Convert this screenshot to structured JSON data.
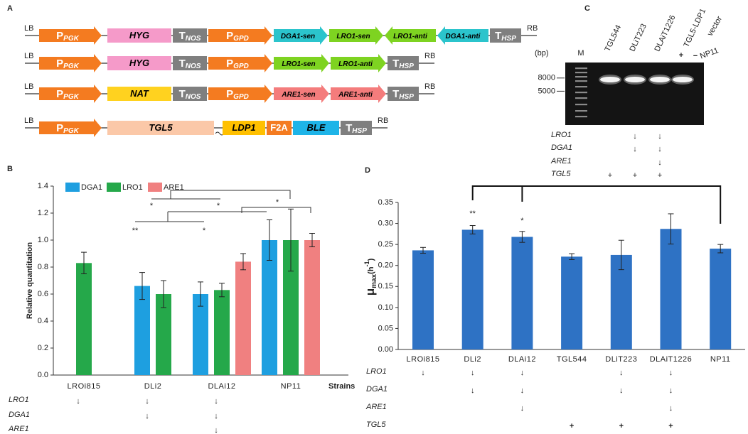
{
  "panel_labels": [
    "A",
    "B",
    "C",
    "D"
  ],
  "constructs": {
    "rows": [
      {
        "left": "LB",
        "right": "RB",
        "parts": [
          {
            "label": "P",
            "sub": "PGK",
            "shape": "arrow",
            "color": "#f47b20"
          },
          {
            "label": "HYG",
            "shape": "box",
            "color": "#f59ac9"
          },
          {
            "label": "T",
            "sub": "NOS",
            "shape": "box",
            "color": "#7f7f7f"
          },
          {
            "label": "P",
            "sub": "GPD",
            "shape": "arrow",
            "color": "#f47b20"
          },
          {
            "label": "DGA1-sen",
            "shape": "arrow",
            "color": "#2bc4cc"
          },
          {
            "label": "LRO1-sen",
            "shape": "arrow",
            "color": "#7ed321"
          },
          {
            "label": "LRO1-anti",
            "shape": "arrow-left",
            "color": "#7ed321"
          },
          {
            "label": "DGA1-anti",
            "shape": "arrow-left",
            "color": "#2bc4cc"
          },
          {
            "label": "T",
            "sub": "HSP",
            "shape": "box",
            "color": "#7f7f7f"
          }
        ]
      },
      {
        "left": "LB",
        "right": "RB",
        "parts": [
          {
            "label": "P",
            "sub": "PGK",
            "shape": "arrow",
            "color": "#f47b20"
          },
          {
            "label": "HYG",
            "shape": "box",
            "color": "#f59ac9"
          },
          {
            "label": "T",
            "sub": "NOS",
            "shape": "box",
            "color": "#7f7f7f"
          },
          {
            "label": "P",
            "sub": "GPD",
            "shape": "arrow",
            "color": "#f47b20"
          },
          {
            "label": "LRO1-sen",
            "shape": "arrow",
            "color": "#7ed321"
          },
          {
            "label": "LRO1-anti",
            "shape": "arrow",
            "color": "#7ed321"
          },
          {
            "label": "T",
            "sub": "HSP",
            "shape": "box",
            "color": "#7f7f7f"
          }
        ]
      },
      {
        "left": "LB",
        "right": "RB",
        "parts": [
          {
            "label": "P",
            "sub": "PGK",
            "shape": "arrow",
            "color": "#f47b20"
          },
          {
            "label": "NAT",
            "shape": "box",
            "color": "#ffd21f"
          },
          {
            "label": "T",
            "sub": "NOS",
            "shape": "box",
            "color": "#7f7f7f"
          },
          {
            "label": "P",
            "sub": "GPD",
            "shape": "arrow",
            "color": "#f47b20"
          },
          {
            "label": "ARE1-sen",
            "shape": "arrow",
            "color": "#f47c7c"
          },
          {
            "label": "ARE1-anti",
            "shape": "arrow",
            "color": "#f47c7c"
          },
          {
            "label": "T",
            "sub": "HSP",
            "shape": "box",
            "color": "#7f7f7f"
          }
        ]
      },
      {
        "left": "LB",
        "right": "RB",
        "parts": [
          {
            "label": "P",
            "sub": "PGK",
            "shape": "arrow",
            "color": "#f47b20"
          },
          {
            "label": "TGL5",
            "shape": "box",
            "color": "#fbc8a8"
          },
          {
            "label": "LDP1",
            "shape": "box",
            "color": "#ffc000"
          },
          {
            "label": "F2A",
            "shape": "box",
            "color": "#f47b20"
          },
          {
            "label": "BLE",
            "shape": "box",
            "color": "#1eb4e8"
          },
          {
            "label": "T",
            "sub": "HSP",
            "shape": "box",
            "color": "#7f7f7f"
          }
        ]
      }
    ]
  },
  "gel": {
    "unit": "(bp)",
    "marker_lane": "M",
    "lanes": [
      {
        "label": "TGL544"
      },
      {
        "label": "DLiT223"
      },
      {
        "label": "DLAiT1226"
      },
      {
        "label": "TGL5-LDP1",
        "sign": "+"
      },
      {
        "label": "vector",
        "label2": "NP11",
        "sign": "−"
      }
    ],
    "markers": [
      8000,
      5000
    ],
    "genotype": [
      {
        "gene": "LRO1",
        "marks": [
          null,
          "↓",
          "↓",
          null,
          null
        ]
      },
      {
        "gene": "DGA1",
        "marks": [
          null,
          "↓",
          "↓",
          null,
          null
        ]
      },
      {
        "gene": "ARE1",
        "marks": [
          null,
          null,
          "↓",
          null,
          null
        ]
      },
      {
        "gene": "TGL5",
        "marks": [
          "+",
          "+",
          "+",
          null,
          null
        ]
      }
    ]
  },
  "chart_data": [
    {
      "type": "bar",
      "categories": [
        "LROi815",
        "DLi2",
        "DLAi12",
        "NP11"
      ],
      "xlabel": "Strains",
      "ylabel": "Relative quantitation",
      "ylim": [
        0,
        1.4
      ],
      "yticks": [
        {
          "value": 0,
          "label": "0.0"
        },
        0.2,
        0.4,
        0.6,
        0.8,
        {
          "value": 1,
          "label": "1.0"
        },
        1.2,
        1.4
      ],
      "legend": "top-left",
      "series": [
        {
          "name": "DGA1",
          "color": "#1e9fe0",
          "values": [
            null,
            0.66,
            0.6,
            1.0
          ],
          "errors": [
            null,
            0.1,
            0.09,
            0.15
          ]
        },
        {
          "name": "LRO1",
          "color": "#25a84a",
          "values": [
            0.83,
            0.6,
            0.63,
            1.0
          ],
          "errors": [
            0.08,
            0.1,
            0.05,
            0.23
          ]
        },
        {
          "name": "ARE1",
          "color": "#f08080",
          "values": [
            null,
            null,
            0.84,
            1.0
          ],
          "errors": [
            null,
            null,
            0.06,
            0.05
          ]
        }
      ],
      "annotations": [
        "*",
        "*",
        "*",
        "**",
        "*"
      ],
      "genotype": [
        {
          "gene": "LRO1",
          "marks": [
            "↓",
            "↓",
            "↓",
            null
          ]
        },
        {
          "gene": "DGA1",
          "marks": [
            null,
            "↓",
            "↓",
            null
          ]
        },
        {
          "gene": "ARE1",
          "marks": [
            null,
            null,
            "↓",
            null
          ]
        }
      ]
    },
    {
      "type": "bar",
      "categories": [
        "LROi815",
        "DLi2",
        "DLAi12",
        "TGL544",
        "DLiT223",
        "DLAiT1226",
        "NP11"
      ],
      "ylabel": {
        "symbol": "μ",
        "sub": "max",
        "unit": "(h",
        "sup": "-1",
        "close": ")"
      },
      "ylim": [
        0,
        0.35
      ],
      "yticks": [
        {
          "value": 0,
          "label": "0.00"
        },
        {
          "value": 0.05,
          "label": "0.05"
        },
        {
          "value": 0.1,
          "label": "0.10"
        },
        {
          "value": 0.15,
          "label": "0.15"
        },
        {
          "value": 0.2,
          "label": "0.20"
        },
        {
          "value": 0.25,
          "label": "0.25"
        },
        {
          "value": 0.3,
          "label": "0.30"
        },
        {
          "value": 0.35,
          "label": "0.35"
        }
      ],
      "color": "#2e72c4",
      "values": [
        0.236,
        0.285,
        0.268,
        0.221,
        0.225,
        0.287,
        0.24
      ],
      "errors": [
        0.007,
        0.01,
        0.013,
        0.007,
        0.035,
        0.036,
        0.01
      ],
      "annotations": [
        "**",
        "*"
      ],
      "genotype": [
        {
          "gene": "LRO1",
          "marks": [
            "↓",
            "↓",
            "↓",
            null,
            "↓",
            "↓",
            null
          ]
        },
        {
          "gene": "DGA1",
          "marks": [
            null,
            "↓",
            "↓",
            null,
            "↓",
            "↓",
            null
          ]
        },
        {
          "gene": "ARE1",
          "marks": [
            null,
            null,
            "↓",
            null,
            null,
            "↓",
            null
          ]
        },
        {
          "gene": "TGL5",
          "marks": [
            null,
            null,
            null,
            "+",
            "+",
            "+",
            null
          ]
        }
      ]
    }
  ]
}
